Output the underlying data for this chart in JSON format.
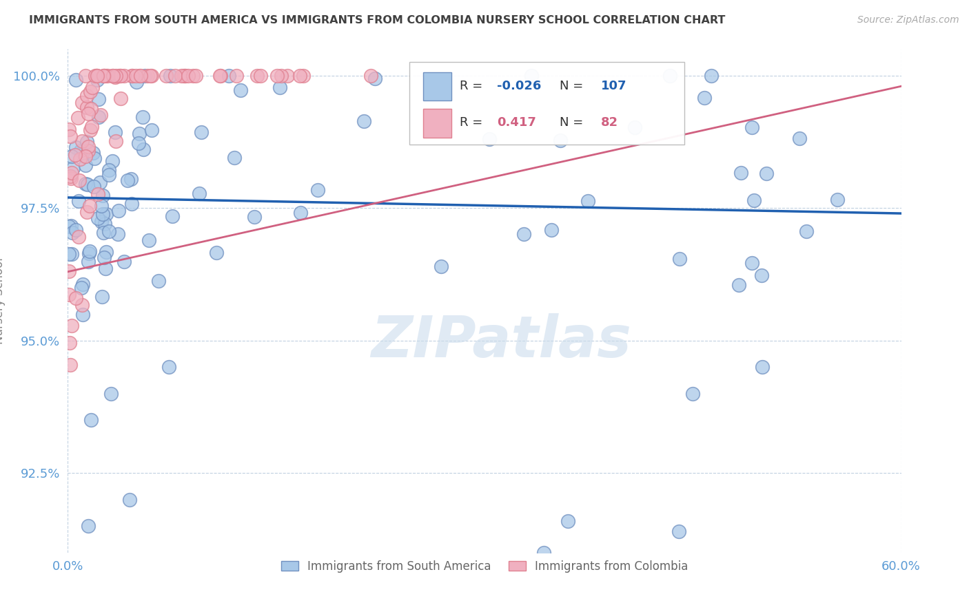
{
  "title": "IMMIGRANTS FROM SOUTH AMERICA VS IMMIGRANTS FROM COLOMBIA NURSERY SCHOOL CORRELATION CHART",
  "source": "Source: ZipAtlas.com",
  "ylabel": "Nursery School",
  "xlim": [
    0.0,
    0.6
  ],
  "ylim": [
    0.91,
    1.005
  ],
  "xticks": [
    0.0,
    0.1,
    0.2,
    0.3,
    0.4,
    0.5,
    0.6
  ],
  "xticklabels": [
    "0.0%",
    "",
    "",
    "",
    "",
    "",
    "60.0%"
  ],
  "yticks": [
    0.925,
    0.95,
    0.975,
    1.0
  ],
  "yticklabels": [
    "92.5%",
    "95.0%",
    "97.5%",
    "100.0%"
  ],
  "blue_R": -0.026,
  "blue_N": 107,
  "pink_R": 0.417,
  "pink_N": 82,
  "blue_color": "#a8c8e8",
  "pink_color": "#f0b0c0",
  "blue_edge_color": "#7090c0",
  "pink_edge_color": "#e08090",
  "blue_line_color": "#2060b0",
  "pink_line_color": "#d06080",
  "legend_blue_label": "Immigrants from South America",
  "legend_pink_label": "Immigrants from Colombia",
  "watermark": "ZIPatlas",
  "background_color": "#ffffff",
  "grid_color": "#c0d0e0",
  "title_color": "#404040",
  "axis_label_color": "#5b9bd5",
  "blue_line_y0": 0.977,
  "blue_line_y1": 0.974,
  "pink_line_y0": 0.963,
  "pink_line_y1": 0.998
}
